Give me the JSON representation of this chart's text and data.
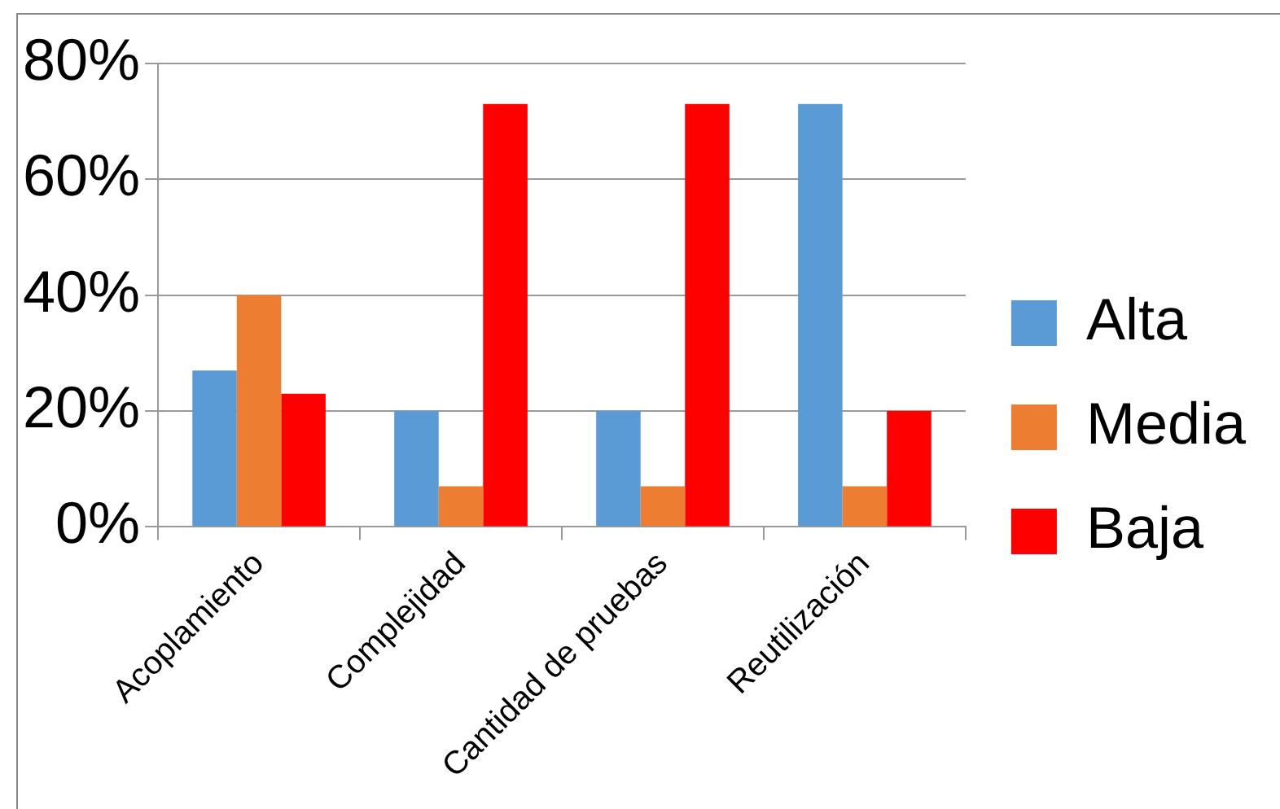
{
  "chart_data": {
    "type": "bar",
    "categories": [
      "Acoplamiento",
      "Complejidad",
      "Cantidad de pruebas",
      "Reutilización"
    ],
    "series": [
      {
        "name": "Alta",
        "color": "#5b9bd5",
        "values": [
          27,
          20,
          20,
          73
        ]
      },
      {
        "name": "Media",
        "color": "#ed7d31",
        "values": [
          40,
          7,
          7,
          7
        ]
      },
      {
        "name": "Baja",
        "color": "#ff0000",
        "values": [
          23,
          73,
          73,
          20
        ]
      }
    ],
    "ylim": [
      0,
      80
    ],
    "yticks": [
      {
        "value": 0,
        "label": "0%"
      },
      {
        "value": 20,
        "label": "20%"
      },
      {
        "value": 40,
        "label": "40%"
      },
      {
        "value": 60,
        "label": "60%"
      },
      {
        "value": 80,
        "label": "80%"
      }
    ],
    "grid": "y",
    "legend": "right"
  }
}
